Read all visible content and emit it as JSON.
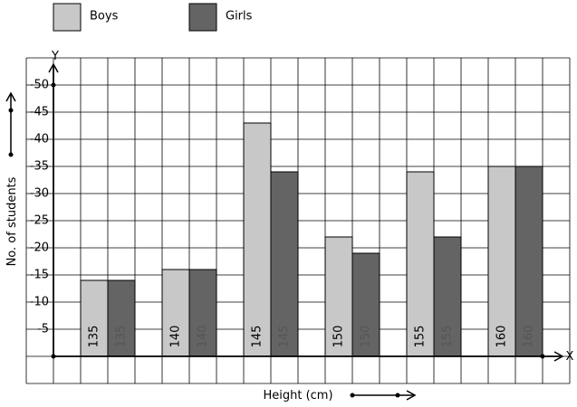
{
  "chart_data": {
    "type": "bar",
    "categories": [
      "135",
      "140",
      "145",
      "150",
      "155",
      "160"
    ],
    "series": [
      {
        "name": "Boys",
        "values": [
          14,
          16,
          43,
          22,
          34,
          35
        ],
        "color": "#c8c8c8"
      },
      {
        "name": "Girls",
        "values": [
          14,
          16,
          34,
          19,
          22,
          35
        ],
        "color": "#646464"
      }
    ],
    "xlabel": "Height (cm)",
    "ylabel": "No. of students",
    "x_axis_letter": "X",
    "y_axis_letter": "Y",
    "yticks": [
      5,
      10,
      15,
      20,
      25,
      30,
      35,
      40,
      45,
      50
    ],
    "ytick_labels": [
      "5",
      "10",
      "15",
      "20",
      "25",
      "30",
      "35",
      "40",
      "45",
      "50"
    ],
    "ylim": [
      -5,
      55
    ],
    "grid": true,
    "legend": "top-left"
  }
}
